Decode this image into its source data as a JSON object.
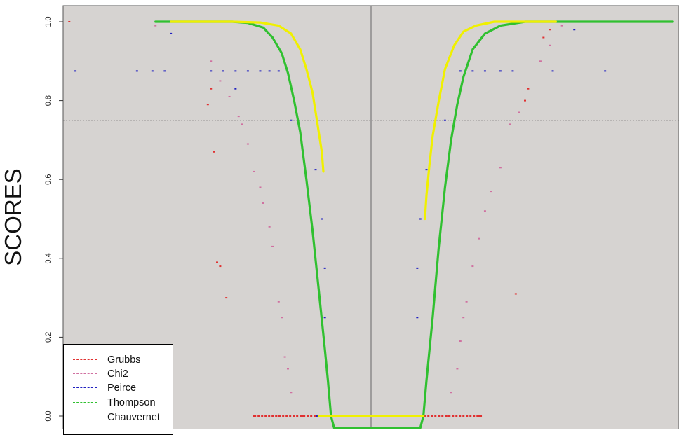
{
  "chart_data": {
    "type": "scatter",
    "title": "",
    "xlabel": "",
    "ylabel": "SCORES",
    "ylim": [
      -0.02,
      1.04
    ],
    "y_ticks": [
      "0.0",
      "0.2",
      "0.4",
      "0.6",
      "0.8",
      "1.0"
    ],
    "y_tick_values": [
      0,
      0.2,
      0.4,
      0.6,
      0.8,
      1.0
    ],
    "reference_lines": {
      "horizontal": [
        0.75,
        0.5
      ],
      "vertical_center": true
    },
    "grid": false,
    "legend_position": "bottom-left",
    "series": [
      {
        "name": "Grubbs",
        "color": "#e03030",
        "points": [
          [
            -0.98,
            1.0
          ],
          [
            -0.66,
            1.0
          ],
          [
            -0.52,
            0.83
          ],
          [
            -0.53,
            0.79
          ],
          [
            -0.51,
            0.67
          ],
          [
            -0.5,
            0.39
          ],
          [
            -0.49,
            0.38
          ],
          [
            -0.47,
            0.3
          ],
          [
            -0.38,
            0.0
          ],
          [
            -0.3,
            0.0
          ],
          [
            -0.22,
            0.0
          ],
          [
            0.16,
            0.0
          ],
          [
            0.25,
            0.0
          ],
          [
            0.35,
            0.0
          ],
          [
            0.47,
            0.31
          ],
          [
            0.5,
            0.8
          ],
          [
            0.51,
            0.83
          ],
          [
            0.56,
            0.96
          ],
          [
            0.58,
            0.98
          ],
          [
            0.6,
            1.0
          ],
          [
            0.78,
            1.0
          ]
        ]
      },
      {
        "name": "Chi2",
        "color": "#d070a0",
        "points": [
          [
            -0.7,
            0.99
          ],
          [
            -0.52,
            0.9
          ],
          [
            -0.49,
            0.85
          ],
          [
            -0.46,
            0.81
          ],
          [
            -0.43,
            0.76
          ],
          [
            -0.42,
            0.74
          ],
          [
            -0.4,
            0.69
          ],
          [
            -0.38,
            0.62
          ],
          [
            -0.36,
            0.58
          ],
          [
            -0.35,
            0.54
          ],
          [
            -0.33,
            0.48
          ],
          [
            -0.32,
            0.43
          ],
          [
            -0.3,
            0.29
          ],
          [
            -0.29,
            0.25
          ],
          [
            -0.28,
            0.15
          ],
          [
            -0.27,
            0.12
          ],
          [
            -0.26,
            0.06
          ],
          [
            0.26,
            0.06
          ],
          [
            0.28,
            0.12
          ],
          [
            0.29,
            0.19
          ],
          [
            0.3,
            0.25
          ],
          [
            0.31,
            0.29
          ],
          [
            0.33,
            0.38
          ],
          [
            0.35,
            0.45
          ],
          [
            0.37,
            0.52
          ],
          [
            0.39,
            0.57
          ],
          [
            0.42,
            0.63
          ],
          [
            0.45,
            0.74
          ],
          [
            0.48,
            0.77
          ],
          [
            0.55,
            0.9
          ],
          [
            0.58,
            0.94
          ],
          [
            0.62,
            0.99
          ]
        ]
      },
      {
        "name": "Peirce",
        "color": "#2020c0",
        "points": [
          [
            -0.96,
            0.875
          ],
          [
            -0.76,
            0.875
          ],
          [
            -0.71,
            0.875
          ],
          [
            -0.67,
            0.875
          ],
          [
            -0.65,
            0.97
          ],
          [
            -0.52,
            0.875
          ],
          [
            -0.48,
            0.875
          ],
          [
            -0.44,
            0.875
          ],
          [
            -0.4,
            0.875
          ],
          [
            -0.36,
            0.875
          ],
          [
            -0.33,
            0.875
          ],
          [
            -0.3,
            0.875
          ],
          [
            -0.44,
            0.83
          ],
          [
            -0.26,
            0.75
          ],
          [
            -0.18,
            0.625
          ],
          [
            -0.16,
            0.5
          ],
          [
            -0.15,
            0.375
          ],
          [
            -0.15,
            0.25
          ],
          [
            0.15,
            0.25
          ],
          [
            0.15,
            0.375
          ],
          [
            0.16,
            0.5
          ],
          [
            0.18,
            0.625
          ],
          [
            0.24,
            0.75
          ],
          [
            0.29,
            0.875
          ],
          [
            0.33,
            0.875
          ],
          [
            0.37,
            0.875
          ],
          [
            0.42,
            0.875
          ],
          [
            0.46,
            0.875
          ],
          [
            0.59,
            0.875
          ],
          [
            0.66,
            0.98
          ],
          [
            0.76,
            0.875
          ]
        ]
      },
      {
        "name": "Thompson",
        "color": "#30c030",
        "curve": true,
        "points": [
          [
            -0.7,
            1.0
          ],
          [
            -0.45,
            1.0
          ],
          [
            -0.4,
            0.997
          ],
          [
            -0.35,
            0.985
          ],
          [
            -0.32,
            0.96
          ],
          [
            -0.29,
            0.92
          ],
          [
            -0.27,
            0.87
          ],
          [
            -0.25,
            0.8
          ],
          [
            -0.23,
            0.72
          ],
          [
            -0.21,
            0.6
          ],
          [
            -0.19,
            0.47
          ],
          [
            -0.17,
            0.32
          ],
          [
            -0.15,
            0.17
          ],
          [
            -0.14,
            0.09
          ],
          [
            -0.13,
            0.0
          ],
          [
            -0.12,
            -0.03
          ],
          [
            0.16,
            -0.03
          ],
          [
            0.17,
            0.0
          ],
          [
            0.18,
            0.09
          ],
          [
            0.2,
            0.25
          ],
          [
            0.22,
            0.43
          ],
          [
            0.24,
            0.58
          ],
          [
            0.26,
            0.7
          ],
          [
            0.28,
            0.79
          ],
          [
            0.3,
            0.86
          ],
          [
            0.33,
            0.93
          ],
          [
            0.37,
            0.97
          ],
          [
            0.42,
            0.99
          ],
          [
            0.5,
            1.0
          ],
          [
            0.98,
            1.0
          ]
        ]
      },
      {
        "name": "Chauvernet",
        "color": "#f0f000",
        "curve": true,
        "points": [
          [
            -0.65,
            1.0
          ],
          [
            -0.45,
            1.0
          ],
          [
            -0.36,
            0.998
          ],
          [
            -0.3,
            0.99
          ],
          [
            -0.26,
            0.97
          ],
          [
            -0.23,
            0.93
          ],
          [
            -0.21,
            0.88
          ],
          [
            -0.19,
            0.82
          ],
          [
            -0.18,
            0.77
          ],
          [
            -0.17,
            0.72
          ],
          [
            -0.16,
            0.67
          ],
          [
            -0.155,
            0.62
          ],
          null,
          [
            -0.17,
            0.0
          ],
          [
            0.17,
            0.0
          ],
          null,
          [
            0.175,
            0.5
          ],
          [
            0.18,
            0.56
          ],
          [
            0.19,
            0.64
          ],
          [
            0.2,
            0.71
          ],
          [
            0.22,
            0.8
          ],
          [
            0.24,
            0.88
          ],
          [
            0.27,
            0.94
          ],
          [
            0.3,
            0.975
          ],
          [
            0.34,
            0.99
          ],
          [
            0.4,
            1.0
          ],
          [
            0.6,
            1.0
          ]
        ]
      }
    ],
    "x_markers": {
      "Grubbs_zero_band_left": [
        -0.38,
        -0.18
      ],
      "Peirce_zero_band_left": [
        -0.18,
        -0.02
      ],
      "Peirce_zero_band_right": [
        0.02,
        0.16
      ],
      "Grubbs_zero_band_right": [
        0.16,
        0.36
      ]
    }
  }
}
